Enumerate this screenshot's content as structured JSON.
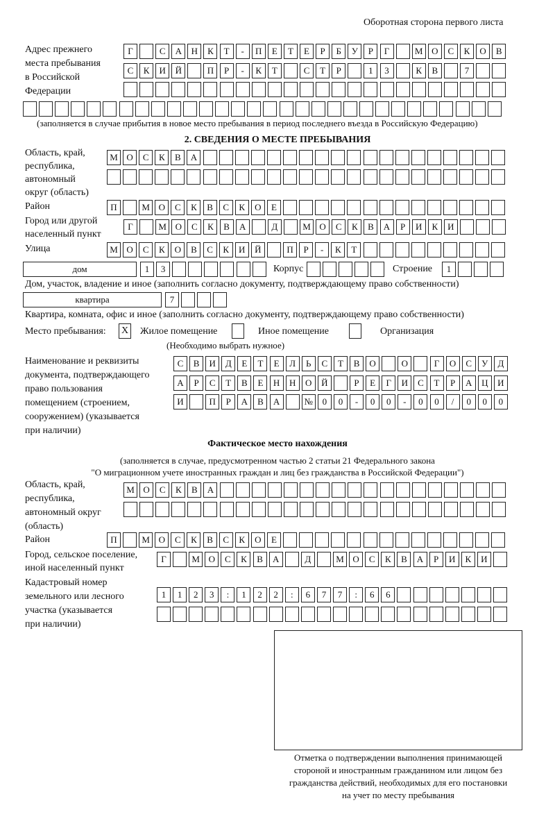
{
  "header": "Оборотная сторона первого листа",
  "prev_address": {
    "label": [
      "Адрес прежнего",
      "места пребывания",
      "в Российской",
      "Федерации"
    ],
    "rows": [
      "Г СAНКТ-ПЕТЕРБУРГ МОСКОВ",
      "СКИЙ ПР-КТ СТР 13 КВ 7",
      "",
      ""
    ],
    "note": "(заполняется в случае прибытия в новое место пребывания в период последнего въезда в Российскую Федерацию)"
  },
  "section2": {
    "title": "2. СВЕДЕНИЯ О МЕСТЕ ПРЕБЫВАНИЯ",
    "region_label": [
      "Область, край,",
      "республика,",
      "автономный",
      "округ (область)"
    ],
    "region": [
      "МОСКВА",
      ""
    ],
    "district_label": "Район",
    "district": "П МОСКВСКОЕ",
    "city_label": [
      "Город или другой",
      "населенный пункт"
    ],
    "city": "Г МОСКВА Д МОСКВАРИКИ",
    "street_label": "Улица",
    "street": "МОСКОВСКИЙ ПР-КТ",
    "house_type": "дом",
    "house": "13",
    "korpus_label": "Корпус",
    "korpus": "",
    "building_label": "Строение",
    "building": "1",
    "house_caption": "Дом, участок, владение и иное (заполнить согласно документу, подтверждающему право собственности)",
    "apt_type": "квартира",
    "apt": "7",
    "apt_caption": "Квартира, комната, офис и иное (заполнить согласно документу, подтверждающему право собственности)",
    "stay_label": "Место пребывания:",
    "stay_options": [
      {
        "label": "Жилое помещение",
        "mark": "X"
      },
      {
        "label": "Иное помещение",
        "mark": ""
      },
      {
        "label": "Организация",
        "mark": ""
      }
    ],
    "stay_hint": "(Необходимо выбрать нужное)",
    "doc_label": [
      "Наименование и реквизиты",
      "документа, подтверждающего",
      "право пользования",
      "помещением (строением,",
      "сооружением) (указывается",
      "при наличии)"
    ],
    "doc": [
      "СВИДЕТЕЛЬСТВО О ГОСУД",
      "АРСТВЕННОЙ РЕГИСТРАЦИ",
      "И ПРАВА №00-00-00/000"
    ]
  },
  "actual": {
    "title": "Фактическое место нахождения",
    "subtitle": [
      "(заполняется в случае, предусмотренном частью 2 статьи 21 Федерального закона",
      "\"О миграционном учете иностранных граждан и лиц без гражданства в Российской Федерации\")"
    ],
    "region_label": [
      "Область, край,",
      "республика,",
      "автономный округ",
      "(область)"
    ],
    "region": [
      "МОСКВА",
      ""
    ],
    "district_label": "Район",
    "district": "П МОСКВСКОЕ",
    "city_label": [
      "Город, сельское поселение,",
      "иной населенный пункт"
    ],
    "city": "Г МОСКВА Д МОСКВАРИКИ",
    "cadastre_label": [
      "Кадастровый номер",
      "земельного или лесного",
      "участка (указывается",
      "при наличии)"
    ],
    "cadastre": [
      "1123:122:677:66",
      ""
    ]
  },
  "stamp_caption": [
    "Отметка о подтверждении выполнения принимающей",
    "стороной и иностранным гражданином или лицом без",
    "гражданства действий, необходимых для его постановки",
    "на учет по месту пребывания"
  ]
}
